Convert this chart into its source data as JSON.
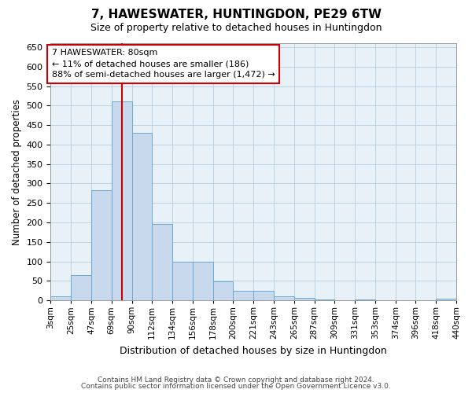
{
  "title": "7, HAWESWATER, HUNTINGDON, PE29 6TW",
  "subtitle": "Size of property relative to detached houses in Huntingdon",
  "xlabel": "Distribution of detached houses by size in Huntingdon",
  "ylabel": "Number of detached properties",
  "bar_color": "#c8d9ee",
  "bar_edge_color": "#6aaad4",
  "grid_color": "#b8cfe0",
  "background_color": "#e8f0f8",
  "vline_x": 80,
  "vline_color": "#cc0000",
  "annotation_text": "7 HAWESWATER: 80sqm\n← 11% of detached houses are smaller (186)\n88% of semi-detached houses are larger (1,472) →",
  "annotation_box_color": "#ffffff",
  "annotation_box_edge": "#cc0000",
  "footer1": "Contains HM Land Registry data © Crown copyright and database right 2024.",
  "footer2": "Contains public sector information licensed under the Open Government Licence v3.0.",
  "bin_labels": [
    "3sqm",
    "25sqm",
    "47sqm",
    "69sqm",
    "90sqm",
    "112sqm",
    "134sqm",
    "156sqm",
    "178sqm",
    "200sqm",
    "221sqm",
    "243sqm",
    "265sqm",
    "287sqm",
    "309sqm",
    "331sqm",
    "353sqm",
    "374sqm",
    "396sqm",
    "418sqm",
    "440sqm"
  ],
  "bin_starts": [
    3,
    25,
    47,
    69,
    91,
    113,
    135,
    157,
    179,
    201,
    223,
    245,
    267,
    289,
    311,
    333,
    355,
    377,
    399,
    421
  ],
  "bin_width": 22,
  "counts": [
    10,
    65,
    283,
    510,
    430,
    195,
    100,
    100,
    48,
    25,
    25,
    10,
    7,
    3,
    0,
    2,
    0,
    0,
    0,
    5
  ],
  "ylim": [
    0,
    660
  ],
  "yticks": [
    0,
    50,
    100,
    150,
    200,
    250,
    300,
    350,
    400,
    450,
    500,
    550,
    600,
    650
  ],
  "tick_positions": [
    3,
    25,
    47,
    69,
    91,
    113,
    135,
    157,
    179,
    201,
    223,
    245,
    267,
    289,
    311,
    333,
    355,
    377,
    399,
    421,
    443
  ]
}
